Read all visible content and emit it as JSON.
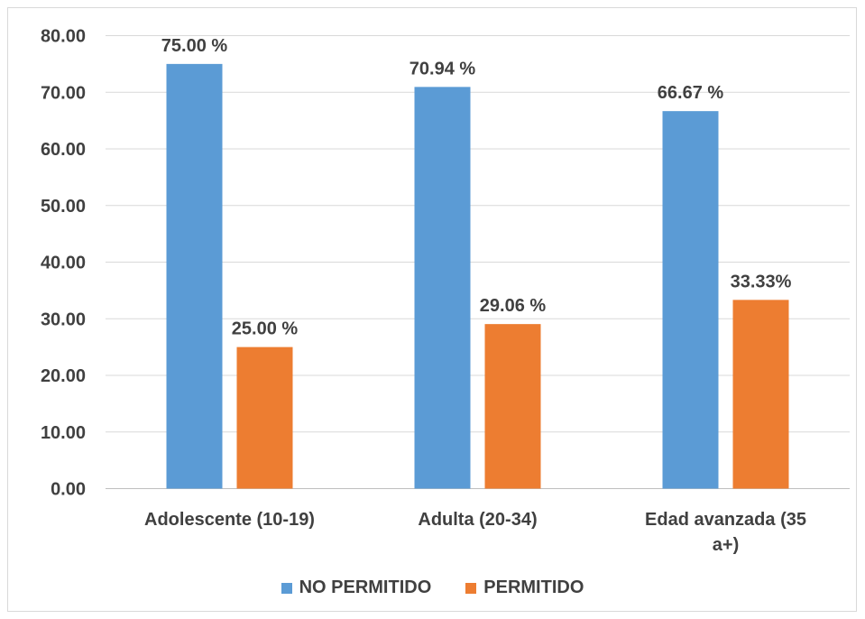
{
  "chart_data": {
    "type": "bar",
    "categories": [
      [
        "Adolescente (10-19)"
      ],
      [
        "Adulta (20-34)"
      ],
      [
        "Edad avanzada (35",
        "a+)"
      ]
    ],
    "series": [
      {
        "name": "NO PERMITIDO",
        "color": "#5b9bd5",
        "values": [
          75.0,
          70.94,
          66.67
        ],
        "labels": [
          "75.00 %",
          "70.94 %",
          "66.67 %"
        ]
      },
      {
        "name": "PERMITIDO",
        "color": "#ed7d31",
        "values": [
          25.0,
          29.06,
          33.33
        ],
        "labels": [
          "25.00 %",
          "29.06 %",
          "33.33%"
        ]
      }
    ],
    "yticks": [
      "0.00",
      "10.00",
      "20.00",
      "30.00",
      "40.00",
      "50.00",
      "60.00",
      "70.00",
      "80.00"
    ],
    "ylim": [
      0,
      80
    ],
    "grid": true,
    "legend_position": "bottom"
  }
}
